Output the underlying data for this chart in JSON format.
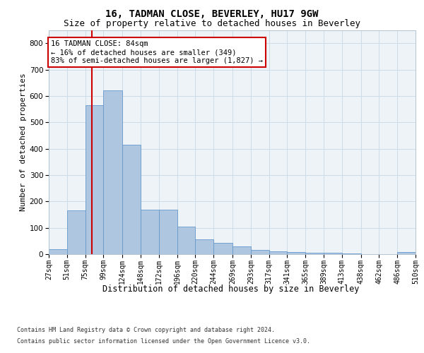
{
  "title": "16, TADMAN CLOSE, BEVERLEY, HU17 9GW",
  "subtitle": "Size of property relative to detached houses in Beverley",
  "xlabel": "Distribution of detached houses by size in Beverley",
  "ylabel": "Number of detached properties",
  "footer_line1": "Contains HM Land Registry data © Crown copyright and database right 2024.",
  "footer_line2": "Contains public sector information licensed under the Open Government Licence v3.0.",
  "bar_color": "#aec6e0",
  "bar_edge_color": "#6699cc",
  "grid_color": "#ccdde8",
  "annotation_text": "16 TADMAN CLOSE: 84sqm\n← 16% of detached houses are smaller (349)\n83% of semi-detached houses are larger (1,827) →",
  "annotation_box_color": "#ffffff",
  "annotation_edge_color": "#cc0000",
  "redline_color": "#cc0000",
  "property_sqm": 84,
  "bin_edges": [
    27,
    51,
    75,
    99,
    124,
    148,
    172,
    196,
    220,
    244,
    269,
    293,
    317,
    341,
    365,
    389,
    413,
    438,
    462,
    486,
    510
  ],
  "bar_heights": [
    20,
    165,
    565,
    620,
    415,
    170,
    170,
    105,
    55,
    42,
    30,
    15,
    10,
    8,
    5,
    5,
    4,
    0,
    0,
    7
  ],
  "ylim": [
    0,
    850
  ],
  "yticks": [
    0,
    100,
    200,
    300,
    400,
    500,
    600,
    700,
    800
  ],
  "background_color": "#eef3f8",
  "title_fontsize": 10,
  "subtitle_fontsize": 9,
  "ylabel_fontsize": 8,
  "xlabel_fontsize": 8.5,
  "tick_fontsize": 7,
  "footer_fontsize": 6,
  "annot_fontsize": 7.5
}
